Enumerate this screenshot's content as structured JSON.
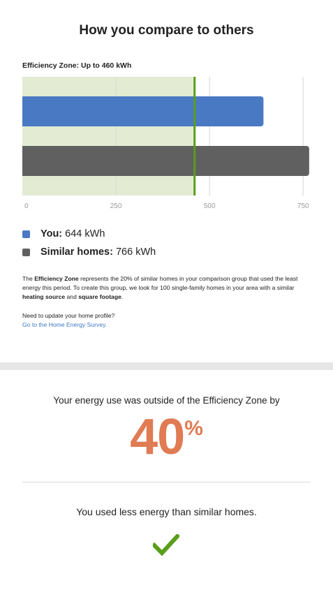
{
  "header": {
    "title": "How you compare to others"
  },
  "chart_data": {
    "type": "bar",
    "orientation": "horizontal",
    "title": "Efficiency Zone: Up to 460 kWh",
    "categories": [
      "You",
      "Similar homes"
    ],
    "values": [
      644,
      766
    ],
    "units": "kWh",
    "xlim": [
      0,
      770
    ],
    "xticks": [
      0,
      250,
      500,
      750
    ],
    "efficiency_zone_max": 460,
    "grid": true,
    "colors": {
      "you": "#4a79c4",
      "similar": "#606060",
      "zone": "#e3ecd3",
      "zone_line": "#5a9e1b"
    }
  },
  "legend": [
    {
      "label": "You:",
      "value": "644 kWh",
      "color": "#4a79c4"
    },
    {
      "label": "Similar homes:",
      "value": "766 kWh",
      "color": "#606060"
    }
  ],
  "description": {
    "p1": "The ",
    "b1": "Efficiency Zone",
    "p2": " represents the 20% of similar homes in your comparison group that used the least energy this period. To create this group, we look for 100 single-family homes in your area with a similar ",
    "b2": "heating source",
    "p3": " and ",
    "b3": "square footage",
    "p4": "."
  },
  "update": {
    "prompt": "Need to update your home profile?",
    "link": "Go to the Home Energy Survey",
    "suffix": "."
  },
  "result": {
    "headline": "Your energy use was outside of the Efficiency Zone by",
    "percent": "40",
    "percent_sign": "%",
    "summary": "You used less energy than similar homes.",
    "check_icon": "check-icon",
    "accent": "#e07b53",
    "check_color": "#5a9e1b"
  }
}
